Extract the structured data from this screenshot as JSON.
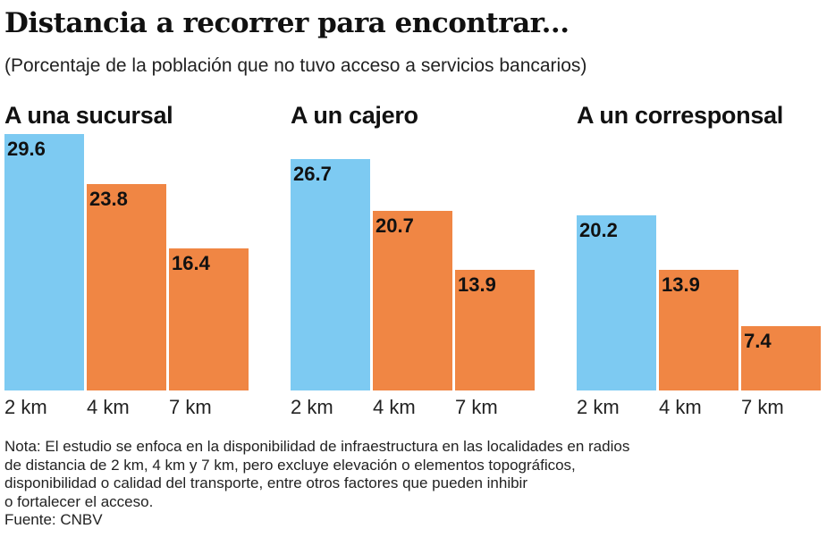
{
  "title": "Distancia a recorrer para encontrar...",
  "subtitle": "(Porcentaje de la población que no tuvo acceso a servicios bancarios)",
  "colors": {
    "2 km": "#7dcaf2",
    "4 km": "#f08644",
    "7 km": "#f08644"
  },
  "chart_data": [
    {
      "type": "bar",
      "title": "A una sucursal",
      "categories": [
        "2 km",
        "4 km",
        "7 km"
      ],
      "values": [
        29.6,
        23.8,
        16.4
      ],
      "ylim": [
        0,
        29.6
      ]
    },
    {
      "type": "bar",
      "title": "A un cajero",
      "categories": [
        "2 km",
        "4 km",
        "7 km"
      ],
      "values": [
        26.7,
        20.7,
        13.9
      ],
      "ylim": [
        0,
        29.6
      ]
    },
    {
      "type": "bar",
      "title": "A un corresponsal",
      "categories": [
        "2 km",
        "4 km",
        "7 km"
      ],
      "values": [
        20.2,
        13.9,
        7.4
      ],
      "ylim": [
        0,
        29.6
      ]
    }
  ],
  "note_lines": [
    "Nota: El estudio se enfoca en la disponibilidad de infraestructura en las localidades en radios",
    "de distancia de 2 km, 4 km y 7 km, pero excluye elevación o elementos topográficos,",
    "disponibilidad o calidad del transporte, entre otros factores que pueden inhibir",
    "o fortalecer el acceso."
  ],
  "source": "Fuente: CNBV"
}
